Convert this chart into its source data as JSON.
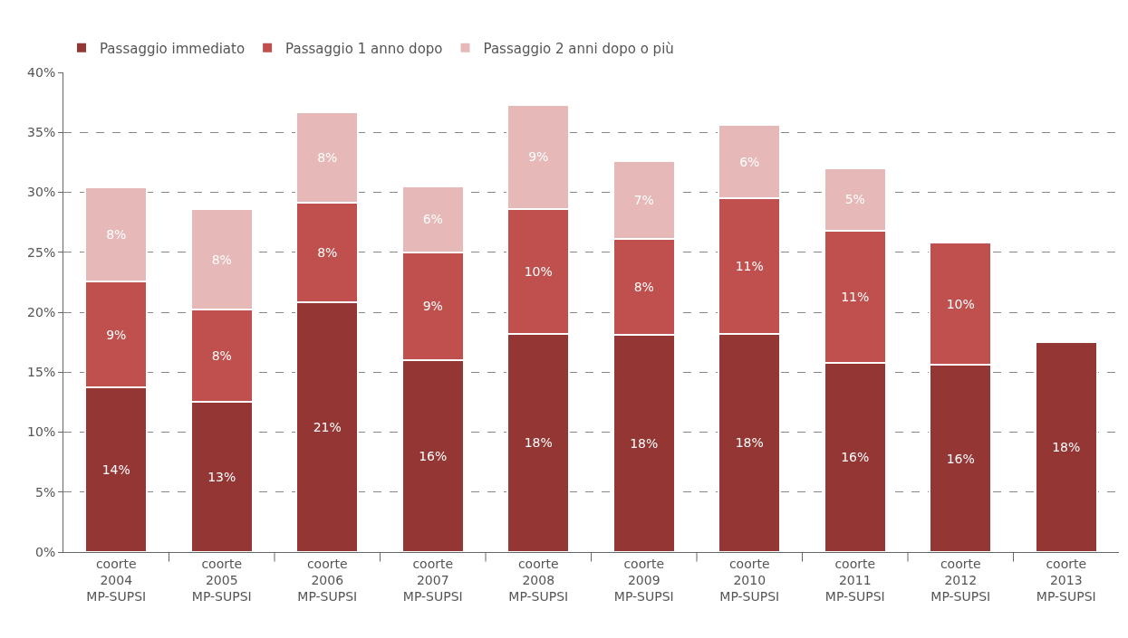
{
  "chart_data": {
    "type": "bar",
    "stacked": true,
    "legend": "top left",
    "grid": "y",
    "categories": [
      "coorte\n2004\nMP-SUPSI",
      "coorte\n2005\nMP-SUPSI",
      "coorte\n2006\nMP-SUPSI",
      "coorte\n2007\nMP-SUPSI",
      "coorte\n2008\nMP-SUPSI",
      "coorte\n2009\nMP-SUPSI",
      "coorte\n2010\nMP-SUPSI",
      "coorte\n2011\nMP-SUPSI",
      "coorte\n2012\nMP-SUPSI",
      "coorte\n2013\nMP-SUPSI"
    ],
    "ylim": [
      0,
      40
    ],
    "yticks": [
      {
        "value": 0,
        "label": "0%"
      },
      {
        "value": 5,
        "label": "5%"
      },
      {
        "value": 10,
        "label": "10%"
      },
      {
        "value": 15,
        "label": "15%"
      },
      {
        "value": 20,
        "label": "20%"
      },
      {
        "value": 25,
        "label": "25%"
      },
      {
        "value": 30,
        "label": "30%"
      },
      {
        "value": 35,
        "label": "35%"
      },
      {
        "value": 40,
        "label": "40%"
      }
    ],
    "series": [
      {
        "name": "Passaggio immediato",
        "color": "#943634",
        "values": [
          13.7,
          12.5,
          20.8,
          16.0,
          18.2,
          18.1,
          18.2,
          15.8,
          15.6,
          17.5
        ],
        "value_labels": [
          "14%",
          "13%",
          "21%",
          "16%",
          "18%",
          "18%",
          "18%",
          "16%",
          "16%",
          "18%"
        ]
      },
      {
        "name": "Passaggio 1 anno dopo",
        "color": "#c0504d",
        "values": [
          8.9,
          7.7,
          8.3,
          9.0,
          10.4,
          8.0,
          11.3,
          11.0,
          10.2,
          null
        ],
        "value_labels": [
          "9%",
          "8%",
          "8%",
          "9%",
          "10%",
          "8%",
          "11%",
          "11%",
          "10%",
          null
        ]
      },
      {
        "name": "Passaggio 2 anni dopo o più",
        "color": "#e6b9b8",
        "values": [
          7.8,
          8.4,
          7.6,
          5.5,
          8.7,
          6.5,
          6.1,
          5.2,
          null,
          null
        ],
        "value_labels": [
          "8%",
          "8%",
          "8%",
          "6%",
          "9%",
          "7%",
          "6%",
          "5%",
          null,
          null
        ]
      }
    ]
  }
}
